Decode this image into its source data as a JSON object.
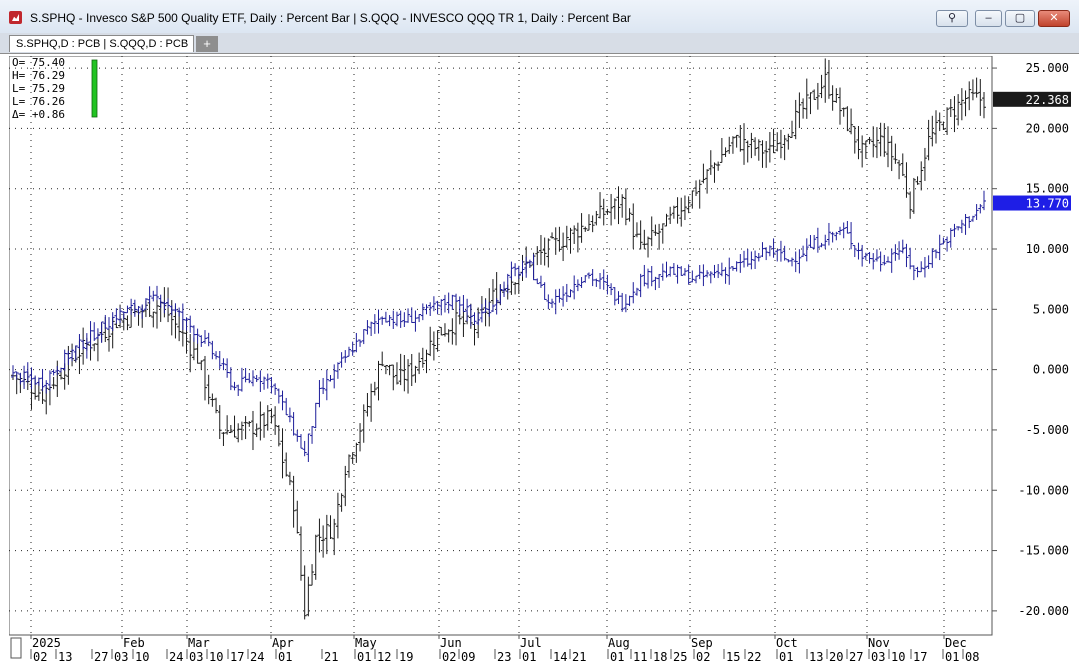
{
  "window": {
    "title": "S.SPHQ - Invesco S&P 500 Quality ETF, Daily : Percent Bar   |   S.QQQ - INVESCO QQQ TR 1, Daily : Percent Bar",
    "buttons": {
      "pin": "⚲",
      "minimize": "–",
      "restore": "▢",
      "close": "✕"
    }
  },
  "tabs": [
    {
      "label": "S.SPHQ,D : PCB   |   S.QQQ,D : PCB"
    }
  ],
  "tab_add_label": "+",
  "ohlc_readout": {
    "open": "O=   75.40",
    "high": "H=   76.29",
    "low1": "L=   75.29",
    "low2": "L=   76.26",
    "change": "Δ=   +0.86"
  },
  "colors": {
    "sphq_series": "#1a1a1a",
    "qqq_series": "#1c1c99",
    "qqq_tag": "#1e1ee6",
    "sphq_tag": "#1a1a1a",
    "readout_bar": "#22c322"
  },
  "chart_data": {
    "type": "bar",
    "title": "S.SPHQ - Invesco S&P 500 Quality ETF, Daily : Percent Bar | S.QQQ - INVESCO QQQ TR 1, Daily : Percent Bar",
    "ylim": [
      -22,
      26
    ],
    "y_ticks": [
      "25.000",
      "20.000",
      "15.000",
      "10.000",
      "5.000",
      "0.000",
      "-5.000",
      "-10.000",
      "-15.000",
      "-20.000"
    ],
    "y_tick_values": [
      25,
      20,
      15,
      10,
      5,
      0,
      -5,
      -10,
      -15,
      -20
    ],
    "x_months": [
      "2025",
      "Feb",
      "Mar",
      "Apr",
      "May",
      "Jun",
      "Jul",
      "Aug",
      "Sep",
      "Oct",
      "Nov",
      "Dec"
    ],
    "x_days": [
      "02",
      "13",
      "27",
      "03",
      "10",
      "24",
      "03",
      "10",
      "17",
      "24",
      "01",
      "21",
      "01",
      "12",
      "19",
      "02",
      "09",
      "23",
      "01",
      "14",
      "21",
      "01",
      "11",
      "18",
      "25",
      "02",
      "15",
      "22",
      "01",
      "13",
      "20",
      "27",
      "03",
      "10",
      "17",
      "01",
      "08"
    ],
    "grid": true,
    "series": [
      {
        "ticker": "S.QQQ",
        "last_value": "22.368",
        "anchors": [
          [
            0,
            -0.5
          ],
          [
            8,
            -2
          ],
          [
            16,
            1
          ],
          [
            28,
            4
          ],
          [
            40,
            5.5
          ],
          [
            50,
            1
          ],
          [
            56,
            -5
          ],
          [
            63,
            -5
          ],
          [
            70,
            -4
          ],
          [
            76,
            -11
          ],
          [
            79,
            -20
          ],
          [
            82,
            -14
          ],
          [
            87,
            -13
          ],
          [
            90,
            -8
          ],
          [
            95,
            -4
          ],
          [
            100,
            1
          ],
          [
            104,
            -1
          ],
          [
            108,
            0
          ],
          [
            115,
            3
          ],
          [
            120,
            4
          ],
          [
            125,
            3.5
          ],
          [
            130,
            6
          ],
          [
            140,
            9
          ],
          [
            150,
            11
          ],
          [
            160,
            13
          ],
          [
            165,
            14
          ],
          [
            170,
            10
          ],
          [
            177,
            12
          ],
          [
            185,
            15
          ],
          [
            195,
            19
          ],
          [
            205,
            18
          ],
          [
            210,
            20
          ],
          [
            215,
            22
          ],
          [
            220,
            24
          ],
          [
            225,
            21
          ],
          [
            230,
            18
          ],
          [
            235,
            19
          ],
          [
            240,
            17
          ],
          [
            243,
            14
          ],
          [
            248,
            19
          ],
          [
            253,
            21
          ],
          [
            258,
            22.5
          ],
          [
            263,
            22.4
          ]
        ]
      },
      {
        "ticker": "S.SPHQ",
        "last_value": "13.770",
        "anchors": [
          [
            0,
            -0.5
          ],
          [
            8,
            -1
          ],
          [
            16,
            1.5
          ],
          [
            28,
            4.5
          ],
          [
            40,
            6
          ],
          [
            50,
            3
          ],
          [
            55,
            1
          ],
          [
            60,
            -1.5
          ],
          [
            66,
            -0.5
          ],
          [
            70,
            -1
          ],
          [
            76,
            -5
          ],
          [
            79,
            -7
          ],
          [
            83,
            -2
          ],
          [
            90,
            1
          ],
          [
            95,
            3
          ],
          [
            100,
            4.5
          ],
          [
            105,
            4
          ],
          [
            110,
            4.5
          ],
          [
            120,
            6
          ],
          [
            125,
            4
          ],
          [
            130,
            5.5
          ],
          [
            135,
            8
          ],
          [
            140,
            8.5
          ],
          [
            145,
            5.5
          ],
          [
            150,
            6.5
          ],
          [
            155,
            8
          ],
          [
            160,
            7
          ],
          [
            165,
            5.5
          ],
          [
            170,
            7.5
          ],
          [
            175,
            8
          ],
          [
            180,
            8
          ],
          [
            185,
            7.5
          ],
          [
            190,
            8
          ],
          [
            195,
            8.5
          ],
          [
            200,
            9
          ],
          [
            205,
            10
          ],
          [
            210,
            9
          ],
          [
            215,
            10
          ],
          [
            220,
            11
          ],
          [
            225,
            11.5
          ],
          [
            230,
            9.5
          ],
          [
            235,
            9
          ],
          [
            240,
            10
          ],
          [
            245,
            8
          ],
          [
            250,
            10
          ],
          [
            255,
            11.5
          ],
          [
            263,
            13.77
          ]
        ]
      }
    ]
  }
}
